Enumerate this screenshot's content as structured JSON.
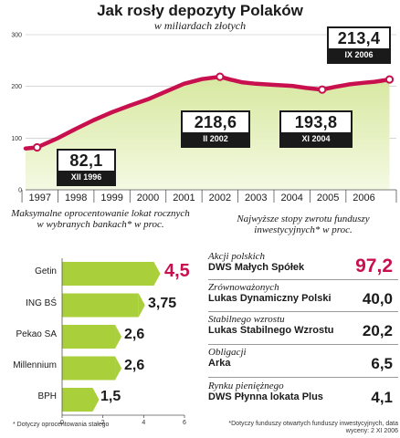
{
  "header": {
    "title": "Jak rosły depozyty Polaków",
    "subtitle": "w miliardach złotych"
  },
  "chart_data": [
    {
      "type": "area",
      "title": "Jak rosły depozyty Polaków",
      "subtitle": "w miliardach złotych",
      "ylim": [
        0,
        300
      ],
      "yticks": [
        "0",
        "100",
        "200",
        "300"
      ],
      "xlim": [
        1996.6,
        2006.9
      ],
      "xticks": [
        "1997",
        "1998",
        "1999",
        "2000",
        "2001",
        "2002",
        "2003",
        "2004",
        "2005",
        "2006"
      ],
      "grid": true,
      "series": [
        {
          "x": [
            1996.6,
            1996.92,
            1997.5,
            1998.0,
            1998.5,
            1999.0,
            1999.5,
            2000.0,
            2000.5,
            2001.0,
            2001.5,
            2002.0,
            2002.3,
            2002.6,
            2003.0,
            2003.5,
            2004.0,
            2004.4,
            2004.84,
            2005.2,
            2005.6,
            2006.0,
            2006.3,
            2006.71
          ],
          "y": [
            80,
            82.1,
            100,
            118,
            135,
            150,
            163,
            175,
            190,
            205,
            214,
            218.6,
            213,
            208,
            205,
            203,
            201,
            197,
            193.8,
            199,
            204,
            207,
            209,
            213.4
          ]
        }
      ],
      "annotations": [
        {
          "label": "82,1",
          "date": "XII 1996",
          "x": 1996.92,
          "y": 82.1
        },
        {
          "label": "218,6",
          "date": "II 2002",
          "x": 2002.0,
          "y": 218.6
        },
        {
          "label": "193,8",
          "date": "XI 2004",
          "x": 2004.84,
          "y": 193.8
        },
        {
          "label": "213,4",
          "date": "IX 2006",
          "x": 2006.71,
          "y": 213.4
        }
      ],
      "colors": {
        "line": "#c8104f",
        "fill_top": "#d7e8a0",
        "fill_bottom": "#f4f9e2",
        "grid": "#bdbdbd"
      }
    },
    {
      "type": "bar",
      "title": "Maksymalne oprocentowanie lokat rocznych w wybranych bankach* w proc.",
      "orientation": "horizontal",
      "categories": [
        "Getin",
        "ING BŚ",
        "Pekao SA",
        "Millennium",
        "BPH"
      ],
      "values": [
        4.5,
        3.75,
        2.6,
        2.6,
        1.5
      ],
      "value_labels": [
        "4,5",
        "3,75",
        "2,6",
        "2,6",
        "1,5"
      ],
      "xlim": [
        0,
        6
      ],
      "xticks": [
        "0",
        "2",
        "4",
        "6"
      ],
      "footnote": "* Dotyczy oprocentowania stałego",
      "colors": {
        "bar": "#a9cf3a",
        "highlight": "#c8104f"
      }
    },
    {
      "type": "table",
      "title": "Najwyższe stopy zwrotu funduszy inwestycyjnych* w proc.",
      "rows": [
        {
          "category": "Akcji polskich",
          "fund": "DWS Małych Spółek",
          "value": "97,2"
        },
        {
          "category": "Zrównoważonych",
          "fund": "Lukas Dynamiczny Polski",
          "value": "40,0"
        },
        {
          "category": "Stabilnego wzrostu",
          "fund": "Lukas Stabilnego Wzrostu",
          "value": "20,2"
        },
        {
          "category": "Obligacji",
          "fund": "Arka",
          "value": "6,5"
        },
        {
          "category": "Rynku pieniężnego",
          "fund": "DWS Płynna lokata Plus",
          "value": "4,1"
        }
      ],
      "footnote": "*Dotyczy funduszy otwartych funduszy inwestycyjnych, data wyceny: 2 XI 2006"
    }
  ]
}
